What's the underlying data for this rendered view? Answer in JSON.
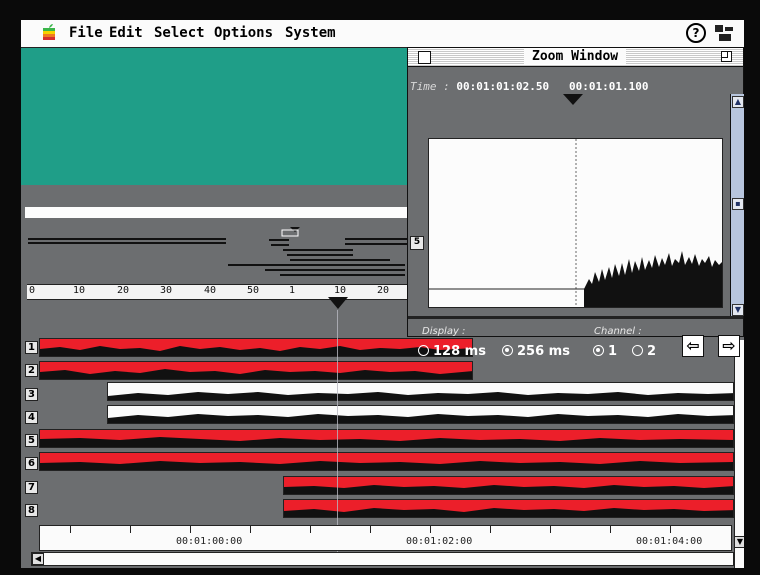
{
  "menubar": {
    "items": [
      "File",
      "Edit",
      "Select",
      "Options",
      "System"
    ],
    "apple_icon": "apple-icon",
    "help_icon": "help-balloon-icon",
    "app_icon": "application-icon"
  },
  "ruler": {
    "labels": [
      "0",
      "10",
      "20",
      "30",
      "40",
      "50",
      "1",
      "10",
      "20"
    ]
  },
  "tracks": [
    {
      "label": "1",
      "color": "#ec1f2a"
    },
    {
      "label": "2",
      "color": "#ec1f2a"
    },
    {
      "label": "3",
      "color": "#fbfbfb"
    },
    {
      "label": "4",
      "color": "#fbfbfb"
    },
    {
      "label": "5",
      "color": "#ec1f2a"
    },
    {
      "label": "6",
      "color": "#ec1f2a"
    },
    {
      "label": "7",
      "color": "#ec1f2a"
    },
    {
      "label": "8",
      "color": "#ec1f2a"
    }
  ],
  "timeline": {
    "timecodes": [
      "00:01:00:00",
      "00:01:02:00",
      "00:01:04:00"
    ]
  },
  "zoom_window": {
    "title": "Zoom Window",
    "time_label": "Time :",
    "time_start": "00:01:01:02.50",
    "time_end": "00:01:01.100",
    "channel_label": "5",
    "display_label": "Display :",
    "channels_label": "Channel :",
    "display_options": [
      "128 ms",
      "256 ms"
    ],
    "display_selected": "256 ms",
    "channel_options": [
      "1",
      "2"
    ],
    "channel_selected": "1",
    "prev_icon": "left-arrow-icon",
    "next_icon": "right-arrow-icon"
  },
  "colors": {
    "teal": "#1f9e88",
    "track_red": "#ec1f2a",
    "background": "#6c6e70"
  }
}
